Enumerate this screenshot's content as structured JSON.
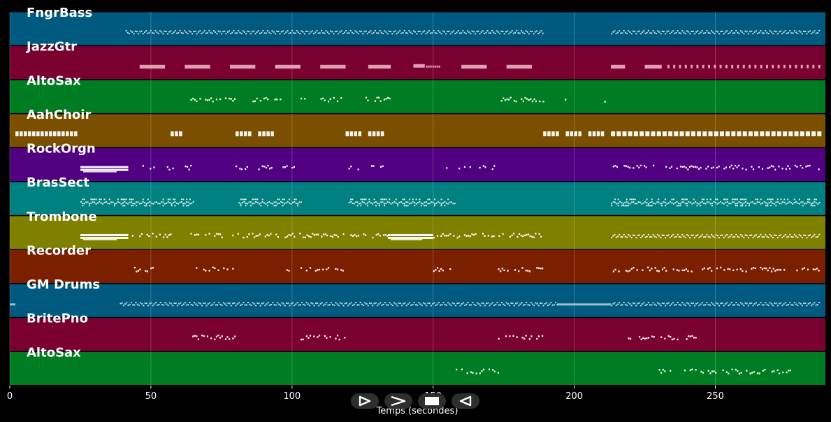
{
  "chart_data": {
    "type": "piano-roll",
    "xlabel": "Temps (secondes)",
    "xlim": [
      0,
      289
    ],
    "xticks": [
      0,
      50,
      100,
      150,
      200,
      250
    ],
    "grid": true,
    "tracks": [
      {
        "name": "FngrBass",
        "color": "#005a80",
        "noteColor": "#cfe0ec",
        "segments": [
          [
            41,
            189,
            "dense"
          ],
          [
            213,
            287,
            "dense"
          ]
        ]
      },
      {
        "name": "JazzGtr",
        "color": "#7a0030",
        "noteColor": "#f3b8c9",
        "segments": [
          [
            46,
            55,
            "block"
          ],
          [
            62,
            71,
            "block"
          ],
          [
            78,
            87,
            "block"
          ],
          [
            94,
            103,
            "block"
          ],
          [
            110,
            119,
            "block"
          ],
          [
            127,
            135,
            "block"
          ],
          [
            143,
            152,
            "mixed"
          ],
          [
            160,
            169,
            "block"
          ],
          [
            176,
            185,
            "block"
          ],
          [
            213,
            218,
            "block"
          ],
          [
            225,
            231,
            "block"
          ],
          [
            233,
            287,
            "staccato"
          ]
        ]
      },
      {
        "name": "AltoSax",
        "color": "#007c22",
        "noteColor": "#ffffff",
        "segments": [
          [
            64,
            80,
            "sparse"
          ],
          [
            86,
            96,
            "sparse"
          ],
          [
            103,
            119,
            "sparse"
          ],
          [
            126,
            135,
            "sparse"
          ],
          [
            174,
            189,
            "sparse"
          ],
          [
            196,
            198,
            "sparse"
          ],
          [
            210,
            212,
            "sparse"
          ]
        ]
      },
      {
        "name": "AahChoir",
        "color": "#7a5000",
        "noteColor": "#ffffff",
        "segments": [
          [
            2,
            24,
            "chord"
          ],
          [
            57,
            61,
            "chord"
          ],
          [
            80,
            85,
            "chord"
          ],
          [
            88,
            93,
            "chord"
          ],
          [
            119,
            124,
            "chord"
          ],
          [
            127,
            132,
            "chord"
          ],
          [
            189,
            194,
            "chord"
          ],
          [
            197,
            202,
            "chord"
          ],
          [
            205,
            210,
            "chord"
          ],
          [
            213,
            287,
            "chordrow"
          ]
        ]
      },
      {
        "name": "RockOrgn",
        "color": "#500080",
        "noteColor": "#ffffff",
        "segments": [
          [
            25,
            42,
            "thick"
          ],
          [
            47,
            52,
            "sparse"
          ],
          [
            55,
            58,
            "sparse"
          ],
          [
            62,
            64,
            "sparse"
          ],
          [
            80,
            84,
            "sparse"
          ],
          [
            88,
            93,
            "sparse"
          ],
          [
            96,
            101,
            "sparse"
          ],
          [
            120,
            124,
            "sparse"
          ],
          [
            128,
            132,
            "sparse"
          ],
          [
            152,
            155,
            "sparse"
          ],
          [
            159,
            163,
            "sparse"
          ],
          [
            165,
            172,
            "sparse"
          ],
          [
            213,
            287,
            "sparse"
          ]
        ]
      },
      {
        "name": "BrasSect",
        "color": "#008080",
        "noteColor": "#dff2f2",
        "segments": [
          [
            25,
            65,
            "multi"
          ],
          [
            81,
            103,
            "multi"
          ],
          [
            120,
            158,
            "multi"
          ],
          [
            213,
            287,
            "multi"
          ]
        ]
      },
      {
        "name": "Trombone",
        "color": "#7f7f00",
        "noteColor": "#ffffff",
        "segments": [
          [
            25,
            42,
            "thick"
          ],
          [
            42,
            57,
            "sparse"
          ],
          [
            64,
            79,
            "sparse"
          ],
          [
            80,
            118,
            "sparse"
          ],
          [
            120,
            134,
            "sparse"
          ],
          [
            134,
            150,
            "thick"
          ],
          [
            150,
            189,
            "sparse"
          ],
          [
            213,
            287,
            "dense"
          ]
        ]
      },
      {
        "name": "Recorder",
        "color": "#7a2000",
        "noteColor": "#ffffff",
        "segments": [
          [
            44,
            52,
            "sparse"
          ],
          [
            64,
            80,
            "sparse"
          ],
          [
            98,
            99,
            "sparse"
          ],
          [
            103,
            119,
            "sparse"
          ],
          [
            150,
            157,
            "sparse"
          ],
          [
            173,
            189,
            "sparse"
          ],
          [
            213,
            287,
            "sparse"
          ]
        ]
      },
      {
        "name": "GM Drums",
        "color": "#005a80",
        "noteColor": "#cfe0ec",
        "segments": [
          [
            0,
            2,
            "long"
          ],
          [
            39,
            194,
            "dense"
          ],
          [
            194,
            213,
            "long"
          ],
          [
            213,
            287,
            "dense"
          ]
        ]
      },
      {
        "name": "BritePno",
        "color": "#7a0030",
        "noteColor": "#ffffff",
        "segments": [
          [
            64,
            80,
            "sparse"
          ],
          [
            103,
            119,
            "sparse"
          ],
          [
            173,
            189,
            "sparse"
          ],
          [
            219,
            243,
            "sparse"
          ]
        ]
      },
      {
        "name": "AltoSax",
        "color": "#007c22",
        "noteColor": "#ffffff",
        "segments": [
          [
            158,
            173,
            "sparse"
          ],
          [
            228,
            277,
            "sparse"
          ]
        ]
      }
    ]
  },
  "controls": [
    {
      "name": "play-reverse-button",
      "icon": "play-outline-icon"
    },
    {
      "name": "fast-forward-button",
      "icon": "chevron-right-icon"
    },
    {
      "name": "stop-button",
      "icon": "stop-icon"
    },
    {
      "name": "rewind-button",
      "icon": "play-left-outline-icon"
    }
  ]
}
